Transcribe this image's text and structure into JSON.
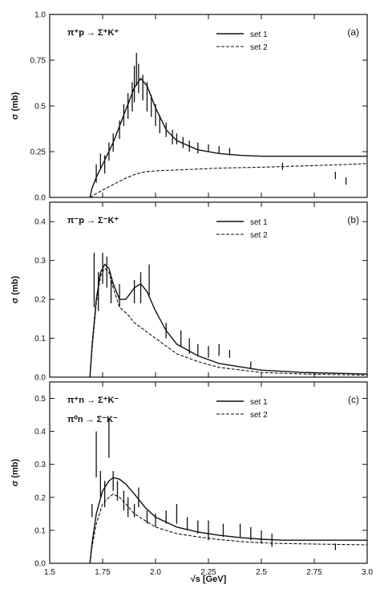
{
  "colors": {
    "ink": "#111111",
    "background": "#ffffff"
  },
  "xlabel": "√s  [GeV]",
  "x_ticks": [
    "1.5",
    "1.75",
    "2.0",
    "2.25",
    "2.5",
    "2.75",
    "3.0"
  ],
  "chart_data": [
    {
      "type": "line",
      "panel": "(a)",
      "reaction": "π⁺p → Σ⁺K⁺",
      "ylabel": "σ (mb)",
      "xlim": [
        1.5,
        3.0
      ],
      "ylim": [
        0.0,
        1.0
      ],
      "y_ticks": [
        0.0,
        0.25,
        0.5,
        0.75,
        1.0
      ],
      "y_tick_labels": [
        "0.0",
        "0.25",
        "0.5",
        "0.75",
        "1.0"
      ],
      "legend_position": "top-right",
      "series": [
        {
          "name": "set 1",
          "style": "solid",
          "x": [
            1.69,
            1.7,
            1.72,
            1.75,
            1.8,
            1.85,
            1.9,
            1.93,
            1.96,
            2.0,
            2.05,
            2.1,
            2.2,
            2.3,
            2.4,
            2.5,
            2.6,
            2.7,
            3.0
          ],
          "y": [
            0.0,
            0.05,
            0.11,
            0.18,
            0.3,
            0.45,
            0.6,
            0.65,
            0.61,
            0.49,
            0.37,
            0.31,
            0.26,
            0.24,
            0.23,
            0.225,
            0.225,
            0.225,
            0.225
          ]
        },
        {
          "name": "set 2",
          "style": "dashed",
          "x": [
            1.69,
            1.72,
            1.75,
            1.8,
            1.85,
            1.9,
            1.95,
            2.0,
            2.1,
            2.2,
            2.3,
            2.5,
            2.7,
            2.9,
            3.0
          ],
          "y": [
            0.0,
            0.02,
            0.04,
            0.07,
            0.1,
            0.125,
            0.14,
            0.145,
            0.15,
            0.155,
            0.16,
            0.165,
            0.172,
            0.18,
            0.185
          ]
        }
      ],
      "data_points": [
        {
          "x": 1.72,
          "y": 0.13,
          "err": 0.05
        },
        {
          "x": 1.74,
          "y": 0.2,
          "err": 0.04
        },
        {
          "x": 1.76,
          "y": 0.18,
          "err": 0.05
        },
        {
          "x": 1.78,
          "y": 0.25,
          "err": 0.05
        },
        {
          "x": 1.8,
          "y": 0.3,
          "err": 0.05
        },
        {
          "x": 1.83,
          "y": 0.37,
          "err": 0.05
        },
        {
          "x": 1.85,
          "y": 0.45,
          "err": 0.06
        },
        {
          "x": 1.87,
          "y": 0.5,
          "err": 0.07
        },
        {
          "x": 1.89,
          "y": 0.55,
          "err": 0.08
        },
        {
          "x": 1.9,
          "y": 0.62,
          "err": 0.1
        },
        {
          "x": 1.91,
          "y": 0.7,
          "err": 0.09
        },
        {
          "x": 1.92,
          "y": 0.65,
          "err": 0.08
        },
        {
          "x": 1.94,
          "y": 0.6,
          "err": 0.07
        },
        {
          "x": 1.96,
          "y": 0.55,
          "err": 0.08
        },
        {
          "x": 1.98,
          "y": 0.5,
          "err": 0.06
        },
        {
          "x": 2.0,
          "y": 0.45,
          "err": 0.06
        },
        {
          "x": 2.02,
          "y": 0.4,
          "err": 0.05
        },
        {
          "x": 2.05,
          "y": 0.37,
          "err": 0.04
        },
        {
          "x": 2.08,
          "y": 0.33,
          "err": 0.04
        },
        {
          "x": 2.1,
          "y": 0.32,
          "err": 0.03
        },
        {
          "x": 2.13,
          "y": 0.3,
          "err": 0.03
        },
        {
          "x": 2.16,
          "y": 0.28,
          "err": 0.03
        },
        {
          "x": 2.2,
          "y": 0.27,
          "err": 0.03
        },
        {
          "x": 2.25,
          "y": 0.27,
          "err": 0.02
        },
        {
          "x": 2.3,
          "y": 0.26,
          "err": 0.02
        },
        {
          "x": 2.35,
          "y": 0.25,
          "err": 0.02
        },
        {
          "x": 2.6,
          "y": 0.17,
          "err": 0.02
        },
        {
          "x": 2.85,
          "y": 0.12,
          "err": 0.02
        },
        {
          "x": 2.9,
          "y": 0.09,
          "err": 0.02
        }
      ]
    },
    {
      "type": "line",
      "panel": "(b)",
      "reaction": "π⁻p → Σ⁻K⁺",
      "ylabel": "σ (mb)",
      "xlim": [
        1.5,
        3.0
      ],
      "ylim": [
        0.0,
        0.45
      ],
      "y_ticks": [
        0.0,
        0.1,
        0.2,
        0.3,
        0.4
      ],
      "y_tick_labels": [
        "0.0",
        "0.1",
        "0.2",
        "0.3",
        "0.4"
      ],
      "legend_position": "top-right",
      "series": [
        {
          "name": "set 1",
          "style": "solid",
          "x": [
            1.69,
            1.7,
            1.72,
            1.74,
            1.76,
            1.78,
            1.8,
            1.83,
            1.86,
            1.9,
            1.93,
            1.96,
            2.0,
            2.05,
            2.1,
            2.2,
            2.3,
            2.5,
            2.7,
            3.0
          ],
          "y": [
            0.0,
            0.08,
            0.2,
            0.27,
            0.29,
            0.28,
            0.24,
            0.2,
            0.2,
            0.23,
            0.24,
            0.22,
            0.17,
            0.12,
            0.085,
            0.055,
            0.035,
            0.018,
            0.012,
            0.008
          ]
        },
        {
          "name": "set 2",
          "style": "dashed",
          "x": [
            1.69,
            1.7,
            1.72,
            1.74,
            1.76,
            1.78,
            1.8,
            1.83,
            1.87,
            1.9,
            1.95,
            2.0,
            2.05,
            2.1,
            2.2,
            2.3,
            2.5,
            2.7,
            3.0
          ],
          "y": [
            0.0,
            0.07,
            0.19,
            0.26,
            0.28,
            0.27,
            0.23,
            0.18,
            0.16,
            0.14,
            0.12,
            0.1,
            0.08,
            0.06,
            0.04,
            0.025,
            0.012,
            0.008,
            0.005
          ]
        }
      ],
      "data_points": [
        {
          "x": 1.71,
          "y": 0.25,
          "err": 0.07
        },
        {
          "x": 1.73,
          "y": 0.22,
          "err": 0.05
        },
        {
          "x": 1.75,
          "y": 0.28,
          "err": 0.04
        },
        {
          "x": 1.77,
          "y": 0.27,
          "err": 0.04
        },
        {
          "x": 1.79,
          "y": 0.22,
          "err": 0.03
        },
        {
          "x": 1.83,
          "y": 0.21,
          "err": 0.03
        },
        {
          "x": 1.9,
          "y": 0.22,
          "err": 0.03
        },
        {
          "x": 1.93,
          "y": 0.23,
          "err": 0.04
        },
        {
          "x": 1.97,
          "y": 0.25,
          "err": 0.04
        },
        {
          "x": 2.05,
          "y": 0.12,
          "err": 0.02
        },
        {
          "x": 2.12,
          "y": 0.1,
          "err": 0.02
        },
        {
          "x": 2.16,
          "y": 0.08,
          "err": 0.02
        },
        {
          "x": 2.2,
          "y": 0.07,
          "err": 0.015
        },
        {
          "x": 2.25,
          "y": 0.065,
          "err": 0.015
        },
        {
          "x": 2.3,
          "y": 0.07,
          "err": 0.015
        },
        {
          "x": 2.35,
          "y": 0.06,
          "err": 0.01
        },
        {
          "x": 2.45,
          "y": 0.03,
          "err": 0.01
        }
      ]
    },
    {
      "type": "line",
      "panel": "(c)",
      "reaction": "π⁺n → Σ⁺K⁻",
      "reaction2": "π⁰n → Σ⁻K⁻",
      "ylabel": "σ (mb)",
      "xlim": [
        1.5,
        3.0
      ],
      "ylim": [
        0.0,
        0.55
      ],
      "y_ticks": [
        0.0,
        0.1,
        0.2,
        0.3,
        0.4,
        0.5
      ],
      "y_tick_labels": [
        "0.0",
        "0.1",
        "0.2",
        "0.3",
        "0.4",
        "0.5"
      ],
      "legend_position": "top-right",
      "series": [
        {
          "name": "set 1",
          "style": "solid",
          "x": [
            1.69,
            1.7,
            1.72,
            1.75,
            1.78,
            1.8,
            1.83,
            1.86,
            1.9,
            1.95,
            2.0,
            2.1,
            2.2,
            2.3,
            2.4,
            2.5,
            2.6,
            2.8,
            3.0
          ],
          "y": [
            0.0,
            0.06,
            0.15,
            0.22,
            0.25,
            0.26,
            0.255,
            0.24,
            0.21,
            0.17,
            0.14,
            0.11,
            0.095,
            0.085,
            0.078,
            0.073,
            0.07,
            0.07,
            0.07
          ]
        },
        {
          "name": "set 2",
          "style": "dashed",
          "x": [
            1.69,
            1.7,
            1.72,
            1.75,
            1.78,
            1.8,
            1.83,
            1.86,
            1.9,
            1.95,
            2.0,
            2.1,
            2.2,
            2.3,
            2.4,
            2.5,
            2.6,
            2.8,
            3.0
          ],
          "y": [
            0.0,
            0.05,
            0.12,
            0.18,
            0.2,
            0.21,
            0.2,
            0.18,
            0.15,
            0.13,
            0.11,
            0.09,
            0.08,
            0.072,
            0.066,
            0.062,
            0.06,
            0.058,
            0.056
          ]
        }
      ],
      "data_points": [
        {
          "x": 1.7,
          "y": 0.16,
          "err": 0.02
        },
        {
          "x": 1.72,
          "y": 0.33,
          "err": 0.07
        },
        {
          "x": 1.74,
          "y": 0.24,
          "err": 0.04
        },
        {
          "x": 1.76,
          "y": 0.21,
          "err": 0.04
        },
        {
          "x": 1.78,
          "y": 0.38,
          "err": 0.06
        },
        {
          "x": 1.8,
          "y": 0.25,
          "err": 0.03
        },
        {
          "x": 1.82,
          "y": 0.22,
          "err": 0.03
        },
        {
          "x": 1.85,
          "y": 0.19,
          "err": 0.03
        },
        {
          "x": 1.87,
          "y": 0.17,
          "err": 0.03
        },
        {
          "x": 1.9,
          "y": 0.16,
          "err": 0.02
        },
        {
          "x": 1.92,
          "y": 0.2,
          "err": 0.03
        },
        {
          "x": 1.96,
          "y": 0.14,
          "err": 0.02
        },
        {
          "x": 2.0,
          "y": 0.13,
          "err": 0.02
        },
        {
          "x": 2.05,
          "y": 0.14,
          "err": 0.02
        },
        {
          "x": 2.1,
          "y": 0.15,
          "err": 0.03
        },
        {
          "x": 2.15,
          "y": 0.12,
          "err": 0.02
        },
        {
          "x": 2.2,
          "y": 0.11,
          "err": 0.02
        },
        {
          "x": 2.25,
          "y": 0.1,
          "err": 0.03
        },
        {
          "x": 2.32,
          "y": 0.1,
          "err": 0.02
        },
        {
          "x": 2.4,
          "y": 0.1,
          "err": 0.02
        },
        {
          "x": 2.45,
          "y": 0.09,
          "err": 0.02
        },
        {
          "x": 2.5,
          "y": 0.08,
          "err": 0.02
        },
        {
          "x": 2.55,
          "y": 0.07,
          "err": 0.02
        },
        {
          "x": 2.85,
          "y": 0.05,
          "err": 0.01
        }
      ]
    }
  ]
}
